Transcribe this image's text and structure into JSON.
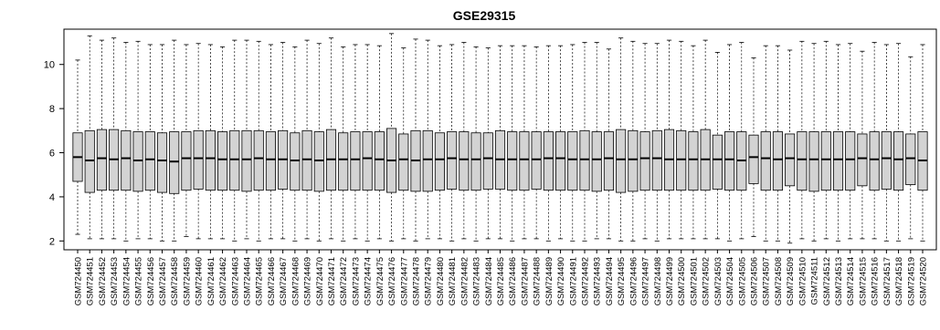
{
  "chart_data": {
    "type": "boxplot",
    "title": "GSE29315",
    "xlabel": "",
    "ylabel": "",
    "ylim": [
      1.6,
      11.6
    ],
    "yticks": [
      2,
      4,
      6,
      8,
      10
    ],
    "grid": false,
    "categories": [
      "GSM724450",
      "GSM724451",
      "GSM724452",
      "GSM724453",
      "GSM724454",
      "GSM724455",
      "GSM724456",
      "GSM724457",
      "GSM724458",
      "GSM724459",
      "GSM724460",
      "GSM724461",
      "GSM724462",
      "GSM724463",
      "GSM724464",
      "GSM724465",
      "GSM724466",
      "GSM724467",
      "GSM724468",
      "GSM724469",
      "GSM724470",
      "GSM724471",
      "GSM724472",
      "GSM724473",
      "GSM724474",
      "GSM724475",
      "GSM724476",
      "GSM724477",
      "GSM724478",
      "GSM724479",
      "GSM724480",
      "GSM724481",
      "GSM724482",
      "GSM724483",
      "GSM724484",
      "GSM724485",
      "GSM724486",
      "GSM724487",
      "GSM724488",
      "GSM724489",
      "GSM724490",
      "GSM724491",
      "GSM724492",
      "GSM724493",
      "GSM724494",
      "GSM724495",
      "GSM724496",
      "GSM724497",
      "GSM724498",
      "GSM724499",
      "GSM724500",
      "GSM724501",
      "GSM724502",
      "GSM724503",
      "GSM724504",
      "GSM724505",
      "GSM724506",
      "GSM724507",
      "GSM724508",
      "GSM724509",
      "GSM724510",
      "GSM724511",
      "GSM724512",
      "GSM724513",
      "GSM724514",
      "GSM724515",
      "GSM724516",
      "GSM724517",
      "GSM724518",
      "GSM724519",
      "GSM724520"
    ],
    "box_color": "#d3d3d3",
    "boxes": [
      {
        "min": 2.3,
        "q1": 4.7,
        "median": 5.8,
        "q3": 6.9,
        "max": 10.2
      },
      {
        "min": 2.1,
        "q1": 4.2,
        "median": 5.65,
        "q3": 7.0,
        "max": 11.3
      },
      {
        "min": 2.1,
        "q1": 4.3,
        "median": 5.75,
        "q3": 7.05,
        "max": 11.1
      },
      {
        "min": 2.1,
        "q1": 4.3,
        "median": 5.7,
        "q3": 7.05,
        "max": 11.2
      },
      {
        "min": 2.0,
        "q1": 4.3,
        "median": 5.75,
        "q3": 7.0,
        "max": 11.0
      },
      {
        "min": 2.1,
        "q1": 4.25,
        "median": 5.65,
        "q3": 6.95,
        "max": 11.05
      },
      {
        "min": 2.1,
        "q1": 4.3,
        "median": 5.7,
        "q3": 6.95,
        "max": 10.9
      },
      {
        "min": 2.0,
        "q1": 4.2,
        "median": 5.65,
        "q3": 6.9,
        "max": 10.9
      },
      {
        "min": 2.0,
        "q1": 4.15,
        "median": 5.6,
        "q3": 6.95,
        "max": 11.1
      },
      {
        "min": 2.2,
        "q1": 4.3,
        "median": 5.75,
        "q3": 6.95,
        "max": 10.9
      },
      {
        "min": 2.1,
        "q1": 4.35,
        "median": 5.75,
        "q3": 7.0,
        "max": 10.95
      },
      {
        "min": 2.1,
        "q1": 4.3,
        "median": 5.75,
        "q3": 7.0,
        "max": 10.9
      },
      {
        "min": 2.1,
        "q1": 4.3,
        "median": 5.7,
        "q3": 6.95,
        "max": 10.8
      },
      {
        "min": 2.0,
        "q1": 4.3,
        "median": 5.7,
        "q3": 7.0,
        "max": 11.1
      },
      {
        "min": 2.1,
        "q1": 4.25,
        "median": 5.7,
        "q3": 7.0,
        "max": 11.1
      },
      {
        "min": 2.0,
        "q1": 4.3,
        "median": 5.75,
        "q3": 7.0,
        "max": 11.05
      },
      {
        "min": 2.1,
        "q1": 4.3,
        "median": 5.7,
        "q3": 6.95,
        "max": 10.9
      },
      {
        "min": 2.1,
        "q1": 4.35,
        "median": 5.7,
        "q3": 7.0,
        "max": 11.0
      },
      {
        "min": 2.0,
        "q1": 4.3,
        "median": 5.65,
        "q3": 6.9,
        "max": 10.8
      },
      {
        "min": 2.1,
        "q1": 4.3,
        "median": 5.7,
        "q3": 7.0,
        "max": 11.1
      },
      {
        "min": 2.0,
        "q1": 4.25,
        "median": 5.65,
        "q3": 6.95,
        "max": 10.95
      },
      {
        "min": 2.1,
        "q1": 4.3,
        "median": 5.7,
        "q3": 7.05,
        "max": 11.2
      },
      {
        "min": 2.0,
        "q1": 4.3,
        "median": 5.7,
        "q3": 6.9,
        "max": 10.8
      },
      {
        "min": 2.1,
        "q1": 4.3,
        "median": 5.7,
        "q3": 6.95,
        "max": 10.9
      },
      {
        "min": 2.0,
        "q1": 4.3,
        "median": 5.75,
        "q3": 6.95,
        "max": 10.9
      },
      {
        "min": 2.1,
        "q1": 4.3,
        "median": 5.7,
        "q3": 6.95,
        "max": 10.85
      },
      {
        "min": 2.0,
        "q1": 4.2,
        "median": 5.65,
        "q3": 7.1,
        "max": 11.4
      },
      {
        "min": 2.1,
        "q1": 4.3,
        "median": 5.7,
        "q3": 6.85,
        "max": 10.75
      },
      {
        "min": 2.0,
        "q1": 4.25,
        "median": 5.65,
        "q3": 7.0,
        "max": 11.15
      },
      {
        "min": 2.1,
        "q1": 4.25,
        "median": 5.7,
        "q3": 7.0,
        "max": 11.1
      },
      {
        "min": 2.1,
        "q1": 4.3,
        "median": 5.7,
        "q3": 6.9,
        "max": 10.85
      },
      {
        "min": 2.0,
        "q1": 4.35,
        "median": 5.75,
        "q3": 6.95,
        "max": 10.9
      },
      {
        "min": 2.1,
        "q1": 4.3,
        "median": 5.7,
        "q3": 6.95,
        "max": 11.0
      },
      {
        "min": 2.0,
        "q1": 4.3,
        "median": 5.7,
        "q3": 6.9,
        "max": 10.8
      },
      {
        "min": 2.1,
        "q1": 4.35,
        "median": 5.75,
        "q3": 6.9,
        "max": 10.75
      },
      {
        "min": 2.1,
        "q1": 4.35,
        "median": 5.7,
        "q3": 7.0,
        "max": 10.85
      },
      {
        "min": 2.0,
        "q1": 4.3,
        "median": 5.7,
        "q3": 6.95,
        "max": 10.85
      },
      {
        "min": 2.1,
        "q1": 4.3,
        "median": 5.7,
        "q3": 6.95,
        "max": 10.85
      },
      {
        "min": 2.1,
        "q1": 4.35,
        "median": 5.7,
        "q3": 6.95,
        "max": 10.8
      },
      {
        "min": 2.0,
        "q1": 4.3,
        "median": 5.75,
        "q3": 6.95,
        "max": 10.85
      },
      {
        "min": 2.1,
        "q1": 4.3,
        "median": 5.75,
        "q3": 6.95,
        "max": 10.85
      },
      {
        "min": 2.0,
        "q1": 4.3,
        "median": 5.7,
        "q3": 6.95,
        "max": 10.9
      },
      {
        "min": 2.0,
        "q1": 4.3,
        "median": 5.7,
        "q3": 7.0,
        "max": 11.0
      },
      {
        "min": 2.1,
        "q1": 4.25,
        "median": 5.7,
        "q3": 6.95,
        "max": 11.0
      },
      {
        "min": 2.1,
        "q1": 4.3,
        "median": 5.75,
        "q3": 6.95,
        "max": 10.7
      },
      {
        "min": 2.0,
        "q1": 4.2,
        "median": 5.7,
        "q3": 7.05,
        "max": 11.2
      },
      {
        "min": 2.0,
        "q1": 4.25,
        "median": 5.7,
        "q3": 7.0,
        "max": 11.05
      },
      {
        "min": 2.1,
        "q1": 4.3,
        "median": 5.75,
        "q3": 6.95,
        "max": 10.95
      },
      {
        "min": 2.0,
        "q1": 4.3,
        "median": 5.75,
        "q3": 7.0,
        "max": 10.95
      },
      {
        "min": 2.1,
        "q1": 4.3,
        "median": 5.7,
        "q3": 7.05,
        "max": 11.1
      },
      {
        "min": 2.1,
        "q1": 4.3,
        "median": 5.7,
        "q3": 7.0,
        "max": 11.05
      },
      {
        "min": 2.1,
        "q1": 4.3,
        "median": 5.7,
        "q3": 6.95,
        "max": 10.85
      },
      {
        "min": 2.1,
        "q1": 4.3,
        "median": 5.7,
        "q3": 7.05,
        "max": 11.1
      },
      {
        "min": 2.1,
        "q1": 4.35,
        "median": 5.7,
        "q3": 6.8,
        "max": 10.55
      },
      {
        "min": 2.0,
        "q1": 4.3,
        "median": 5.7,
        "q3": 6.95,
        "max": 10.9
      },
      {
        "min": 2.1,
        "q1": 4.3,
        "median": 5.65,
        "q3": 6.95,
        "max": 11.0
      },
      {
        "min": 2.2,
        "q1": 4.6,
        "median": 5.8,
        "q3": 6.8,
        "max": 10.3
      },
      {
        "min": 2.0,
        "q1": 4.3,
        "median": 5.75,
        "q3": 6.95,
        "max": 10.85
      },
      {
        "min": 2.0,
        "q1": 4.3,
        "median": 5.7,
        "q3": 6.95,
        "max": 10.85
      },
      {
        "min": 1.9,
        "q1": 4.5,
        "median": 5.75,
        "q3": 6.85,
        "max": 10.65
      },
      {
        "min": 2.1,
        "q1": 4.3,
        "median": 5.7,
        "q3": 6.95,
        "max": 11.05
      },
      {
        "min": 2.0,
        "q1": 4.25,
        "median": 5.7,
        "q3": 6.95,
        "max": 10.95
      },
      {
        "min": 2.1,
        "q1": 4.3,
        "median": 5.7,
        "q3": 6.95,
        "max": 11.05
      },
      {
        "min": 2.0,
        "q1": 4.3,
        "median": 5.7,
        "q3": 6.95,
        "max": 10.9
      },
      {
        "min": 2.1,
        "q1": 4.3,
        "median": 5.7,
        "q3": 6.95,
        "max": 10.95
      },
      {
        "min": 2.1,
        "q1": 4.5,
        "median": 5.75,
        "q3": 6.85,
        "max": 10.6
      },
      {
        "min": 2.1,
        "q1": 4.3,
        "median": 5.7,
        "q3": 6.95,
        "max": 11.0
      },
      {
        "min": 2.0,
        "q1": 4.35,
        "median": 5.75,
        "q3": 6.95,
        "max": 10.9
      },
      {
        "min": 2.0,
        "q1": 4.3,
        "median": 5.7,
        "q3": 6.95,
        "max": 10.95
      },
      {
        "min": 2.1,
        "q1": 4.55,
        "median": 5.75,
        "q3": 6.85,
        "max": 10.35
      },
      {
        "min": 2.0,
        "q1": 4.3,
        "median": 5.65,
        "q3": 6.95,
        "max": 10.9
      }
    ]
  }
}
